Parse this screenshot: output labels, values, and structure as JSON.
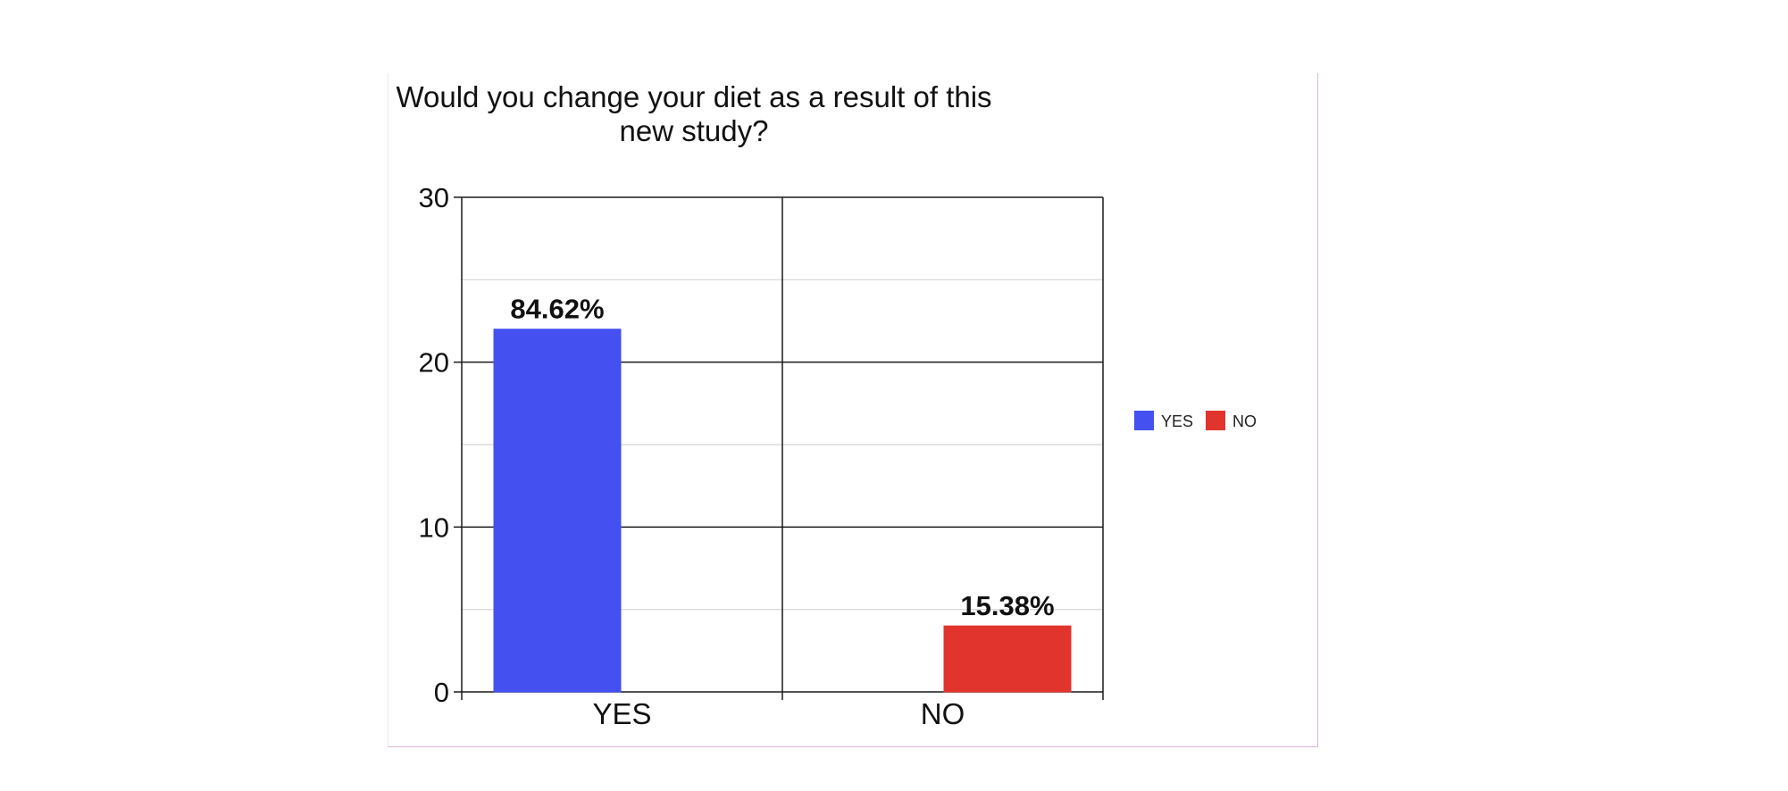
{
  "chart_data": {
    "type": "bar",
    "title": "Would you change your diet as a result of this new study?",
    "title_lines": [
      "Would you change your diet as a result of this",
      "new study?"
    ],
    "categories": [
      "YES",
      "NO"
    ],
    "series": [
      {
        "name": "YES",
        "values": [
          22,
          null
        ],
        "labels": [
          "84.62%",
          null
        ],
        "color": "#4450f0"
      },
      {
        "name": "NO",
        "values": [
          null,
          4
        ],
        "labels": [
          null,
          "15.38%"
        ],
        "color": "#e0342c"
      }
    ],
    "ylim": [
      0,
      30
    ],
    "yticks": [
      0,
      10,
      20,
      30
    ],
    "ytick_labels": [
      "0",
      "10",
      "20",
      "30"
    ],
    "xlabel": "",
    "ylabel": "",
    "grid": true,
    "legend_position": "right"
  }
}
